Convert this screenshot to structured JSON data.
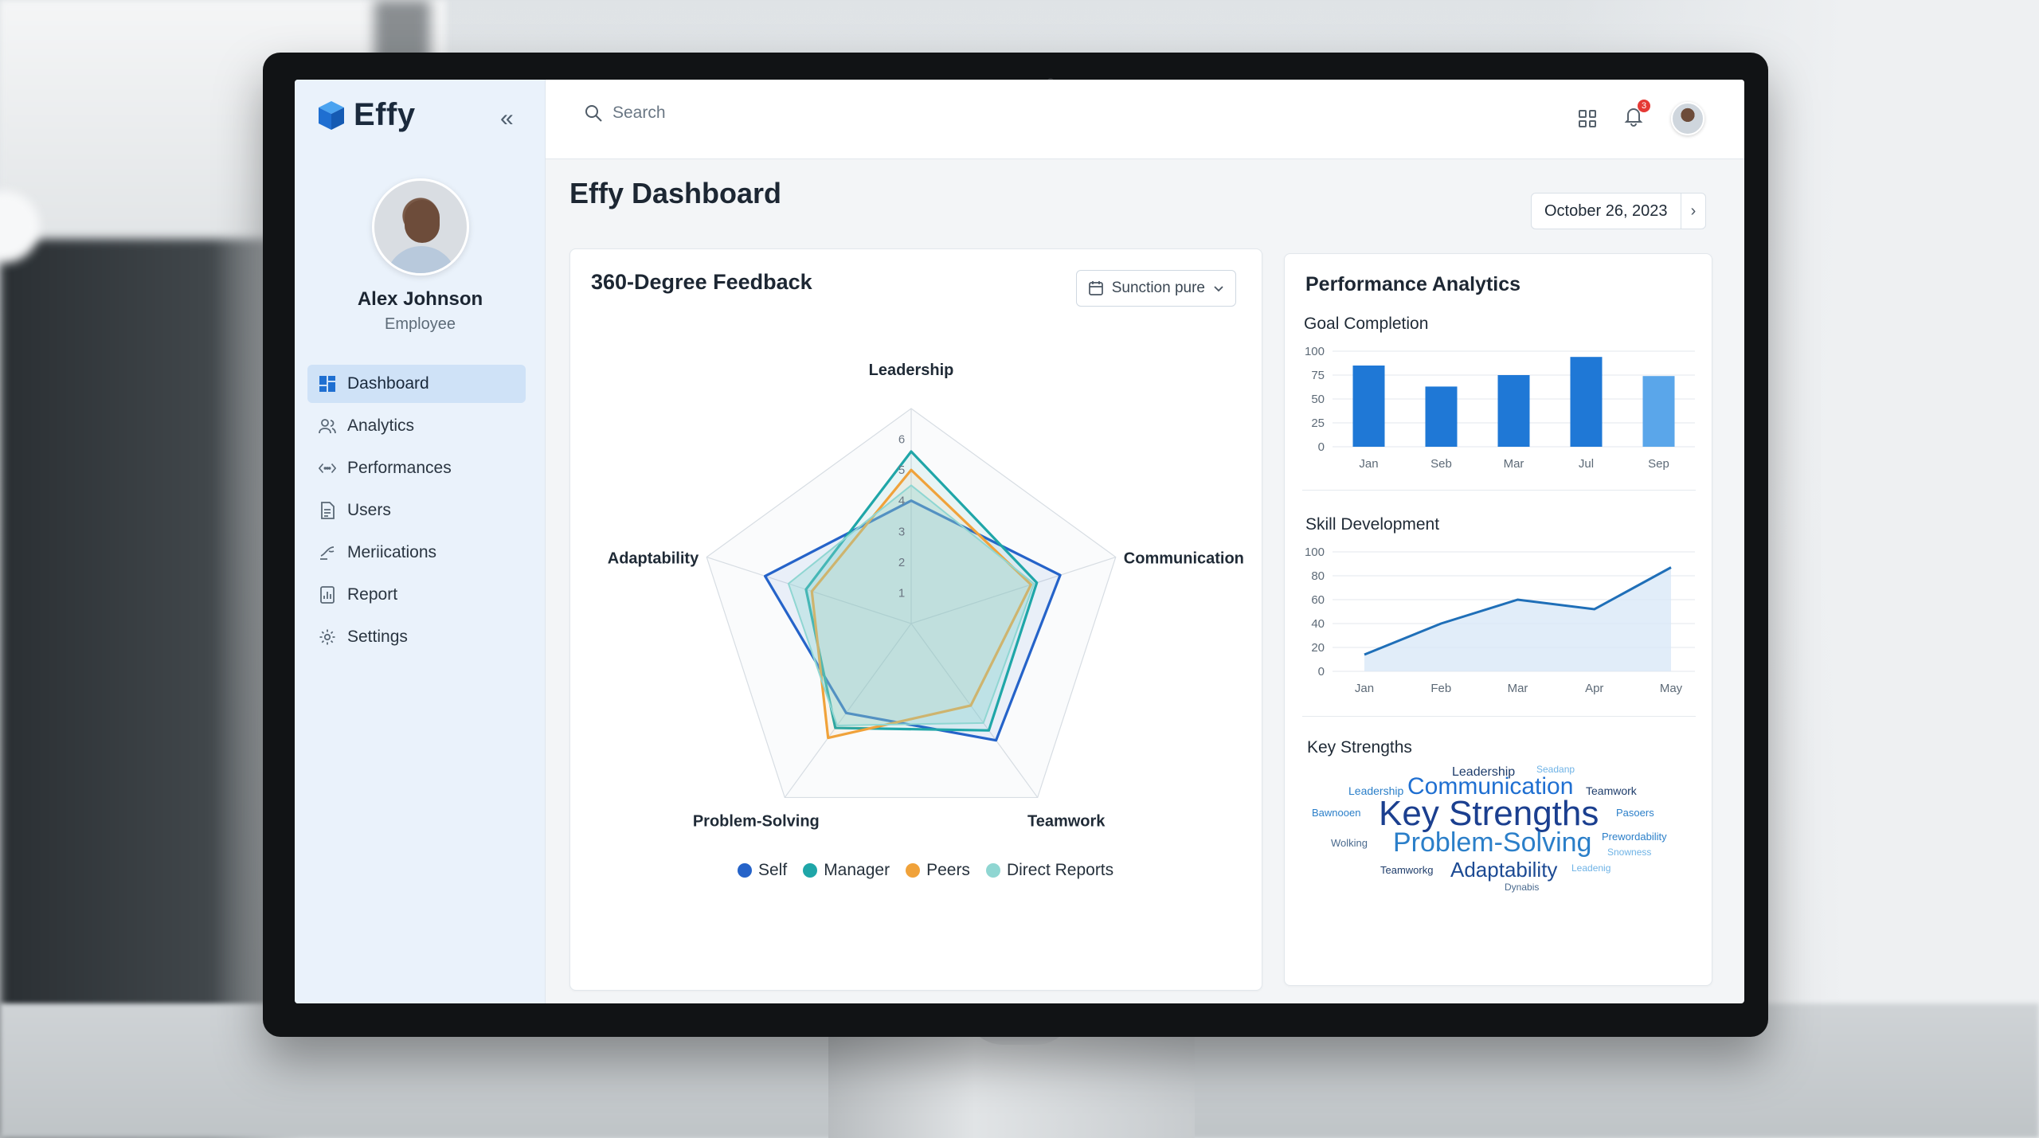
{
  "app": {
    "name": "Effy"
  },
  "user": {
    "name": "Alex Johnson",
    "role": "Employee"
  },
  "sidebar": {
    "items": [
      {
        "label": "Dashboard",
        "icon": "dashboard-icon",
        "active": true
      },
      {
        "label": "Analytics",
        "icon": "users-icon",
        "active": false
      },
      {
        "label": "Performances",
        "icon": "code-icon",
        "active": false
      },
      {
        "label": "Users",
        "icon": "document-icon",
        "active": false
      },
      {
        "label": "Meriications",
        "icon": "link-icon",
        "active": false
      },
      {
        "label": "Report",
        "icon": "report-icon",
        "active": false
      },
      {
        "label": "Settings",
        "icon": "gear-icon",
        "active": false
      }
    ]
  },
  "topbar": {
    "search_placeholder": "Search",
    "notification_count": "3"
  },
  "page": {
    "title": "Effy Dashboard",
    "date": "October 26, 2023"
  },
  "feedback": {
    "title": "360-Degree Feedback",
    "filter_label": "Sunction pure",
    "axes": [
      "Leadership",
      "Communication",
      "Teamwork",
      "Problem-Solving",
      "Adaptability"
    ],
    "ticks": [
      "1",
      "2",
      "3",
      "4",
      "5",
      "6"
    ],
    "scale_max": 7,
    "series": [
      {
        "name": "Self",
        "color": "#2563c9",
        "values": [
          4,
          5.1,
          4.7,
          3.6,
          5
        ]
      },
      {
        "name": "Manager",
        "color": "#1fa6a8",
        "values": [
          5.6,
          4.3,
          4.3,
          4.2,
          3.6
        ]
      },
      {
        "name": "Peers",
        "color": "#f0a23a",
        "values": [
          5,
          4.1,
          3.3,
          4.6,
          3.4
        ]
      },
      {
        "name": "Direct Reports",
        "color": "#8fd6d2",
        "values": [
          4.5,
          4.2,
          4,
          4.1,
          4.2
        ]
      }
    ]
  },
  "performance": {
    "title": "Performance Analytics",
    "goal": {
      "title": "Goal Completion",
      "categories": [
        "Jan",
        "Seb",
        "Mar",
        "Jul",
        "Sep"
      ],
      "values": [
        85,
        63,
        75,
        94,
        74
      ],
      "yticks": [
        "100",
        "75",
        "50",
        "25",
        "0"
      ]
    },
    "skill": {
      "title": "Skill Development",
      "categories": [
        "Jan",
        "Feb",
        "Mar",
        "Apr",
        "May"
      ],
      "values": [
        14,
        40,
        60,
        52,
        87
      ],
      "yticks": [
        "100",
        "80",
        "60",
        "40",
        "20",
        "0"
      ]
    },
    "strengths": {
      "title": "Key Strengths",
      "words": [
        {
          "text": "Key Strengths",
          "color": "#1b3f8f"
        },
        {
          "text": "Communication",
          "color": "#1f6fd1"
        },
        {
          "text": "Problem-Solving",
          "color": "#2b7fc9"
        },
        {
          "text": "Adaptability",
          "color": "#1c4a93"
        },
        {
          "text": "Leadership",
          "color": "#1f3d6b"
        },
        {
          "text": "Teamwork",
          "color": "#1f3d6b"
        },
        {
          "text": "Leadership",
          "color": "#2b7fc9"
        },
        {
          "text": "Seadanp",
          "color": "#6fb3e6"
        },
        {
          "text": "Pasoers",
          "color": "#2b7fc9"
        },
        {
          "text": "Bawnooen",
          "color": "#2b7fc9"
        },
        {
          "text": "Wolking",
          "color": "#4a6a8e"
        },
        {
          "text": "Prewordability",
          "color": "#2b7fc9"
        },
        {
          "text": "Snowness",
          "color": "#6fb3e6"
        },
        {
          "text": "Teamworkg",
          "color": "#1f3d6b"
        },
        {
          "text": "Leadenig",
          "color": "#6fb3e6"
        },
        {
          "text": "Dynabis",
          "color": "#4a6a8e"
        }
      ]
    }
  },
  "chart_data": [
    {
      "type": "radar",
      "title": "360-Degree Feedback",
      "categories": [
        "Leadership",
        "Communication",
        "Teamwork",
        "Problem-Solving",
        "Adaptability"
      ],
      "range": [
        0,
        7
      ],
      "series": [
        {
          "name": "Self",
          "values": [
            4,
            5.1,
            4.7,
            3.6,
            5
          ]
        },
        {
          "name": "Manager",
          "values": [
            5.6,
            4.3,
            4.3,
            4.2,
            3.6
          ]
        },
        {
          "name": "Peers",
          "values": [
            5,
            4.1,
            3.3,
            4.6,
            3.4
          ]
        },
        {
          "name": "Direct Reports",
          "values": [
            4.5,
            4.2,
            4,
            4.1,
            4.2
          ]
        }
      ]
    },
    {
      "type": "bar",
      "title": "Goal Completion",
      "categories": [
        "Jan",
        "Seb",
        "Mar",
        "Jul",
        "Sep"
      ],
      "values": [
        85,
        63,
        75,
        94,
        74
      ],
      "ylim": [
        0,
        100
      ]
    },
    {
      "type": "area",
      "title": "Skill Development",
      "categories": [
        "Jan",
        "Feb",
        "Mar",
        "Apr",
        "May"
      ],
      "values": [
        14,
        40,
        60,
        52,
        87
      ],
      "ylim": [
        0,
        100
      ]
    }
  ]
}
